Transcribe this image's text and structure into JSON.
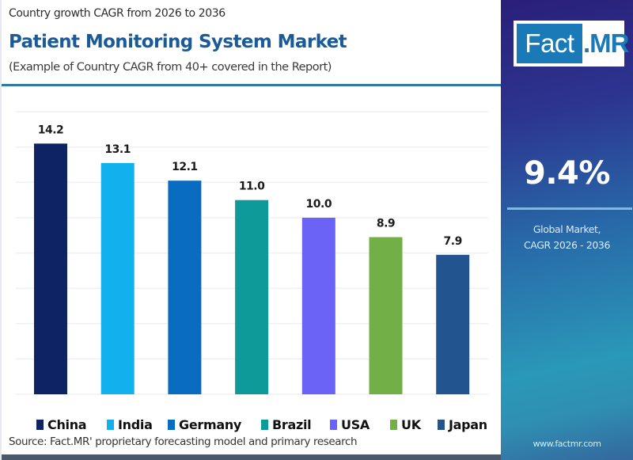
{
  "header": {
    "subtitle": "Country growth CAGR from 2026 to 2036",
    "title": "Patient Monitoring System Market",
    "note": "(Example of Country CAGR from 40+ covered in the Report)"
  },
  "sidebar": {
    "logo_left": "Fact",
    "logo_right": ".MR",
    "global_value": "9.4%",
    "global_caption_line1": "Global Market,",
    "global_caption_line2": "CAGR 2026 - 2036",
    "url": "www.factmr.com"
  },
  "source": "Source: Fact.MR' proprietary forecasting model and primary research",
  "colors": {
    "title": "#1a5a96",
    "accent": "#2e78ad"
  },
  "chart_data": {
    "type": "bar",
    "title": "Patient Monitoring System Market",
    "xlabel": "",
    "ylabel": "",
    "ylim": [
      0,
      16
    ],
    "grid": true,
    "legend": "bottom",
    "categories": [
      "China",
      "India",
      "Germany",
      "Brazil",
      "USA",
      "UK",
      "Japan"
    ],
    "values": [
      14.2,
      13.1,
      12.1,
      11.0,
      10.0,
      8.9,
      7.9
    ],
    "labels": [
      "14.2",
      "13.1",
      "12.1",
      "11.0",
      "10.0",
      "8.9",
      "7.9"
    ],
    "colors": [
      "#0e2364",
      "#12b0ec",
      "#0a6cc0",
      "#0e9a98",
      "#6a63f6",
      "#72b047",
      "#22558f"
    ]
  }
}
